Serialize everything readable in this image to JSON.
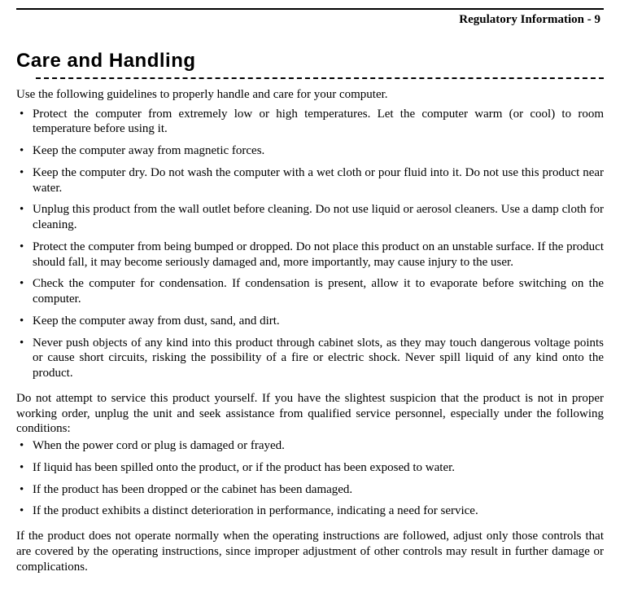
{
  "header": {
    "running_title": "Regulatory Information - 9"
  },
  "section": {
    "title": "Care and Handling",
    "intro": "Use the following guidelines to properly handle and care for your computer.",
    "bullets1": [
      "Protect the computer from extremely low or high temperatures. Let the computer warm (or cool) to room temperature before using it.",
      "Keep the computer away from magnetic forces.",
      "Keep the computer dry. Do not wash the computer with a wet cloth or pour fluid into it. Do not use this product near water.",
      "Unplug this product from the wall outlet before cleaning. Do not use liquid or aerosol cleaners. Use a damp cloth for cleaning.",
      "Protect the computer from being bumped or dropped. Do not place this product on an unstable surface. If the product should fall, it may become seriously damaged and, more importantly, may cause injury to the user.",
      "Check the computer for condensation. If condensation is present, allow it to evaporate before switching on the computer.",
      "Keep the computer away from dust, sand, and dirt.",
      "Never push objects of any kind into this product through cabinet slots, as they may touch dangerous voltage points or cause short circuits, risking the possibility of a fire or electric shock. Never spill liquid of any kind onto the product."
    ],
    "service_intro": "Do not attempt to service this product yourself. If you have the slightest suspicion that the product is not in proper working order, unplug the unit and seek assistance from qualified service personnel, especially under the following conditions:",
    "bullets2": [
      "When the power cord or plug is damaged or frayed.",
      "If liquid has been spilled onto the product, or if the product has been exposed to water.",
      "If the product has been dropped or the cabinet has been damaged.",
      "If the product exhibits a distinct deterioration in performance, indicating a need for service."
    ],
    "closing": "If the product does not operate normally when the operating instructions are followed, adjust only those controls that are covered by the operating instructions, since improper adjustment of other controls may result in further damage or complications."
  }
}
